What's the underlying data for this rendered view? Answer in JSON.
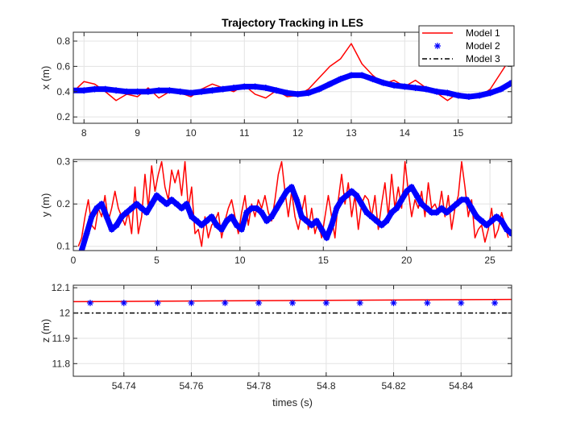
{
  "chart_data": [
    {
      "type": "line",
      "title": "Trajectory Tracking in LES",
      "xlabel": "",
      "ylabel": "x (m)",
      "xlim": [
        7.8,
        16.0
      ],
      "ylim": [
        0.15,
        0.87
      ],
      "xticks": [
        8,
        9,
        10,
        11,
        12,
        13,
        14,
        15
      ],
      "yticks": [
        0.2,
        0.4,
        0.6,
        0.8
      ],
      "ytick_labels": [
        "0.2",
        "0.4",
        "0.6",
        "0.8"
      ],
      "grid": true,
      "legend_position": "top-right",
      "legend": [
        "Model 1",
        "Model 2",
        "Model 3"
      ],
      "series": [
        {
          "name": "Model 1",
          "style": "solid-line",
          "color": "#ff0000",
          "x": [
            7.8,
            8.0,
            8.2,
            8.4,
            8.6,
            8.8,
            9.0,
            9.2,
            9.4,
            9.6,
            9.8,
            10.0,
            10.2,
            10.4,
            10.6,
            10.8,
            11.0,
            11.2,
            11.4,
            11.6,
            11.8,
            12.0,
            12.2,
            12.4,
            12.6,
            12.8,
            13.0,
            13.2,
            13.4,
            13.6,
            13.8,
            14.0,
            14.2,
            14.4,
            14.6,
            14.8,
            15.0,
            15.2,
            15.4,
            15.6,
            15.8,
            16.0
          ],
          "y": [
            0.4,
            0.48,
            0.46,
            0.4,
            0.33,
            0.38,
            0.36,
            0.43,
            0.35,
            0.4,
            0.39,
            0.36,
            0.42,
            0.46,
            0.43,
            0.4,
            0.45,
            0.38,
            0.35,
            0.41,
            0.36,
            0.37,
            0.42,
            0.51,
            0.6,
            0.66,
            0.78,
            0.62,
            0.53,
            0.46,
            0.49,
            0.44,
            0.49,
            0.43,
            0.39,
            0.33,
            0.39,
            0.37,
            0.36,
            0.42,
            0.55,
            0.68
          ]
        },
        {
          "name": "Model 2",
          "style": "star-markers",
          "color": "#0000ff",
          "x": [
            7.8,
            8.0,
            8.2,
            8.4,
            8.6,
            8.8,
            9.0,
            9.2,
            9.4,
            9.6,
            9.8,
            10.0,
            10.2,
            10.4,
            10.6,
            10.8,
            11.0,
            11.2,
            11.4,
            11.6,
            11.8,
            12.0,
            12.2,
            12.4,
            12.6,
            12.8,
            13.0,
            13.2,
            13.4,
            13.6,
            13.8,
            14.0,
            14.2,
            14.4,
            14.6,
            14.8,
            15.0,
            15.2,
            15.4,
            15.6,
            15.8,
            16.0
          ],
          "y": [
            0.41,
            0.41,
            0.42,
            0.42,
            0.41,
            0.4,
            0.4,
            0.4,
            0.41,
            0.41,
            0.4,
            0.39,
            0.4,
            0.41,
            0.42,
            0.43,
            0.44,
            0.44,
            0.43,
            0.41,
            0.39,
            0.38,
            0.39,
            0.42,
            0.46,
            0.5,
            0.53,
            0.53,
            0.5,
            0.47,
            0.45,
            0.44,
            0.43,
            0.42,
            0.4,
            0.39,
            0.37,
            0.36,
            0.37,
            0.39,
            0.42,
            0.47
          ]
        },
        {
          "name": "Model 3",
          "style": "dash-dot-line",
          "color": "#000000",
          "x": [],
          "y": []
        }
      ]
    },
    {
      "type": "line",
      "title": "",
      "xlabel": "",
      "ylabel": "y (m)",
      "xlim": [
        0,
        26.3
      ],
      "ylim": [
        0.09,
        0.305
      ],
      "xticks": [
        0,
        5,
        10,
        15,
        20,
        25
      ],
      "yticks": [
        0.1,
        0.2,
        0.3
      ],
      "ytick_labels": [
        "0.1",
        "0.2",
        "0.3"
      ],
      "grid": true,
      "series": [
        {
          "name": "Model 1",
          "style": "solid-line",
          "color": "#ff0000",
          "x": [
            0.3,
            0.5,
            0.7,
            0.9,
            1.1,
            1.3,
            1.5,
            1.7,
            1.9,
            2.1,
            2.3,
            2.5,
            2.7,
            2.9,
            3.1,
            3.3,
            3.5,
            3.7,
            3.9,
            4.1,
            4.3,
            4.5,
            4.7,
            4.9,
            5.1,
            5.3,
            5.5,
            5.7,
            5.9,
            6.1,
            6.3,
            6.5,
            6.7,
            6.9,
            7.1,
            7.3,
            7.5,
            7.7,
            7.9,
            8.1,
            8.3,
            8.5,
            8.7,
            8.9,
            9.1,
            9.3,
            9.5,
            9.7,
            9.9,
            10.1,
            10.3,
            10.5,
            10.7,
            10.9,
            11.1,
            11.3,
            11.5,
            11.7,
            11.9,
            12.1,
            12.3,
            12.5,
            12.7,
            12.9,
            13.1,
            13.3,
            13.5,
            13.7,
            13.9,
            14.1,
            14.3,
            14.5,
            14.7,
            14.9,
            15.1,
            15.3,
            15.5,
            15.7,
            15.9,
            16.1,
            16.3,
            16.5,
            16.7,
            16.9,
            17.1,
            17.3,
            17.5,
            17.7,
            17.9,
            18.1,
            18.3,
            18.5,
            18.7,
            18.9,
            19.1,
            19.3,
            19.5,
            19.7,
            19.9,
            20.1,
            20.3,
            20.5,
            20.7,
            20.9,
            21.1,
            21.3,
            21.5,
            21.7,
            21.9,
            22.1,
            22.3,
            22.5,
            22.7,
            22.9,
            23.1,
            23.3,
            23.5,
            23.7,
            23.9,
            24.1,
            24.3,
            24.5,
            24.7,
            24.9,
            25.1,
            25.3,
            25.5,
            25.7,
            25.9,
            26.1
          ],
          "y": [
            0.1,
            0.12,
            0.17,
            0.21,
            0.15,
            0.14,
            0.19,
            0.17,
            0.22,
            0.16,
            0.19,
            0.23,
            0.19,
            0.17,
            0.15,
            0.18,
            0.13,
            0.24,
            0.13,
            0.17,
            0.27,
            0.19,
            0.29,
            0.23,
            0.27,
            0.3,
            0.24,
            0.21,
            0.28,
            0.25,
            0.28,
            0.22,
            0.3,
            0.19,
            0.24,
            0.13,
            0.14,
            0.1,
            0.17,
            0.12,
            0.15,
            0.16,
            0.18,
            0.12,
            0.16,
            0.19,
            0.21,
            0.17,
            0.13,
            0.18,
            0.22,
            0.15,
            0.2,
            0.17,
            0.21,
            0.19,
            0.22,
            0.18,
            0.16,
            0.21,
            0.27,
            0.3,
            0.23,
            0.17,
            0.23,
            0.17,
            0.14,
            0.18,
            0.22,
            0.14,
            0.19,
            0.13,
            0.16,
            0.12,
            0.17,
            0.22,
            0.17,
            0.12,
            0.21,
            0.27,
            0.2,
            0.25,
            0.17,
            0.22,
            0.14,
            0.2,
            0.22,
            0.21,
            0.17,
            0.22,
            0.14,
            0.2,
            0.25,
            0.17,
            0.27,
            0.19,
            0.24,
            0.19,
            0.3,
            0.23,
            0.17,
            0.21,
            0.19,
            0.23,
            0.17,
            0.25,
            0.19,
            0.2,
            0.18,
            0.23,
            0.17,
            0.22,
            0.14,
            0.19,
            0.22,
            0.3,
            0.24,
            0.17,
            0.21,
            0.12,
            0.14,
            0.15,
            0.11,
            0.14,
            0.19,
            0.12,
            0.14,
            0.18,
            0.15,
            0.12
          ]
        },
        {
          "name": "Model 2",
          "style": "star-markers",
          "color": "#0000ff",
          "x": [
            0.5,
            0.8,
            1.1,
            1.4,
            1.7,
            2.0,
            2.3,
            2.6,
            2.9,
            3.2,
            3.5,
            3.8,
            4.1,
            4.4,
            4.7,
            5.0,
            5.3,
            5.6,
            5.9,
            6.2,
            6.5,
            6.8,
            7.1,
            7.4,
            7.7,
            8.0,
            8.3,
            8.6,
            8.9,
            9.2,
            9.5,
            9.8,
            10.1,
            10.4,
            10.7,
            11.0,
            11.3,
            11.6,
            11.9,
            12.2,
            12.5,
            12.8,
            13.1,
            13.4,
            13.7,
            14.0,
            14.3,
            14.6,
            14.9,
            15.2,
            15.5,
            15.8,
            16.1,
            16.4,
            16.7,
            17.0,
            17.3,
            17.6,
            17.9,
            18.2,
            18.5,
            18.8,
            19.1,
            19.4,
            19.7,
            20.0,
            20.3,
            20.6,
            20.9,
            21.2,
            21.5,
            21.8,
            22.1,
            22.4,
            22.7,
            23.0,
            23.3,
            23.6,
            23.9,
            24.2,
            24.5,
            24.8,
            25.1,
            25.4,
            25.7,
            26.0,
            26.3
          ],
          "y": [
            0.09,
            0.13,
            0.17,
            0.19,
            0.2,
            0.17,
            0.14,
            0.15,
            0.17,
            0.18,
            0.19,
            0.2,
            0.19,
            0.18,
            0.2,
            0.22,
            0.21,
            0.2,
            0.21,
            0.2,
            0.19,
            0.2,
            0.17,
            0.16,
            0.15,
            0.16,
            0.17,
            0.15,
            0.14,
            0.16,
            0.17,
            0.15,
            0.14,
            0.18,
            0.19,
            0.19,
            0.18,
            0.16,
            0.17,
            0.19,
            0.21,
            0.23,
            0.24,
            0.21,
            0.17,
            0.16,
            0.15,
            0.16,
            0.14,
            0.12,
            0.15,
            0.19,
            0.21,
            0.22,
            0.23,
            0.22,
            0.2,
            0.18,
            0.17,
            0.16,
            0.15,
            0.16,
            0.18,
            0.19,
            0.21,
            0.23,
            0.24,
            0.22,
            0.2,
            0.19,
            0.18,
            0.18,
            0.19,
            0.18,
            0.19,
            0.2,
            0.21,
            0.21,
            0.19,
            0.17,
            0.16,
            0.15,
            0.16,
            0.17,
            0.16,
            0.14,
            0.13
          ]
        }
      ]
    },
    {
      "type": "line",
      "title": "",
      "xlabel": "times (s)",
      "ylabel": "z (m)",
      "xlim": [
        54.725,
        54.855
      ],
      "ylim": [
        11.75,
        12.11
      ],
      "xticks": [
        54.74,
        54.76,
        54.78,
        54.8,
        54.82,
        54.84
      ],
      "xtick_labels": [
        "54.74",
        "54.76",
        "54.78",
        "54.8",
        "54.82",
        "54.84"
      ],
      "yticks": [
        11.8,
        11.9,
        12,
        12.1
      ],
      "ytick_labels": [
        "11.8",
        "11.9",
        "12",
        "12.1"
      ],
      "grid": true,
      "series": [
        {
          "name": "Model 1",
          "style": "solid-line",
          "color": "#ff0000",
          "x": [
            54.725,
            54.855
          ],
          "y": [
            12.045,
            12.054
          ]
        },
        {
          "name": "Model 2",
          "style": "star-markers",
          "color": "#0000ff",
          "x": [
            54.73,
            54.74,
            54.75,
            54.76,
            54.77,
            54.78,
            54.79,
            54.8,
            54.81,
            54.82,
            54.83,
            54.84,
            54.85
          ],
          "y": [
            12.04,
            12.04,
            12.04,
            12.04,
            12.04,
            12.04,
            12.04,
            12.04,
            12.04,
            12.04,
            12.04,
            12.04,
            12.04
          ]
        },
        {
          "name": "Model 3",
          "style": "dash-dot-line",
          "color": "#000000",
          "x": [
            54.725,
            54.855
          ],
          "y": [
            12.0,
            12.0
          ]
        }
      ]
    }
  ]
}
